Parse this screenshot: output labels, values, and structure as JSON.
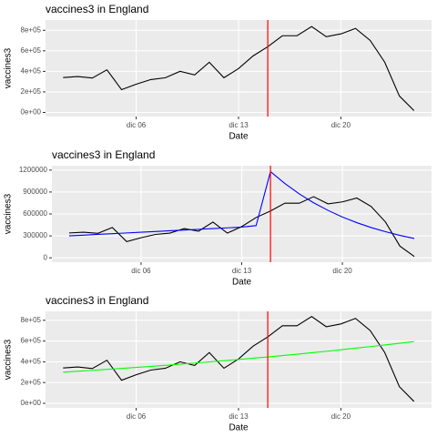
{
  "chart_data": [
    {
      "type": "line",
      "title": "vaccines3 in England",
      "xlabel": "Date",
      "ylabel": "vaccines3",
      "x": [
        1,
        2,
        3,
        4,
        5,
        6,
        7,
        8,
        9,
        10,
        11,
        12,
        13,
        14,
        15,
        16,
        17,
        18,
        19,
        20,
        21,
        22,
        23,
        24,
        25
      ],
      "xlim": [
        -0.2,
        26.2
      ],
      "xticks": [
        {
          "value": 6,
          "label": "dic 06"
        },
        {
          "value": 13,
          "label": "dic 13"
        },
        {
          "value": 20,
          "label": "dic 20"
        }
      ],
      "ylim": [
        -40000,
        900000
      ],
      "yticks": [
        {
          "value": 0,
          "label": "0e+00"
        },
        {
          "value": 200000,
          "label": "2e+05"
        },
        {
          "value": 400000,
          "label": "4e+05"
        },
        {
          "value": 600000,
          "label": "6e+05"
        },
        {
          "value": 800000,
          "label": "8e+05"
        }
      ],
      "vline": {
        "value": 15,
        "color": "#ff0000"
      },
      "series": [
        {
          "color": "#000000",
          "values": [
            340000,
            350000,
            335000,
            415000,
            222000,
            275000,
            320000,
            338000,
            400000,
            365000,
            489000,
            338000,
            427000,
            551000,
            640000,
            747000,
            747000,
            836000,
            738000,
            765000,
            818000,
            702000,
            489000,
            160000,
            18000
          ]
        }
      ]
    },
    {
      "type": "line",
      "title": "vaccines3 in England",
      "xlabel": "Date",
      "ylabel": "vaccines3",
      "x": [
        1,
        2,
        3,
        4,
        5,
        6,
        7,
        8,
        9,
        10,
        11,
        12,
        13,
        14,
        15,
        16,
        17,
        18,
        19,
        20,
        21,
        22,
        23,
        24,
        25
      ],
      "xlim": [
        -0.2,
        26.2
      ],
      "xticks": [
        {
          "value": 6,
          "label": "dic 06"
        },
        {
          "value": 13,
          "label": "dic 13"
        },
        {
          "value": 20,
          "label": "dic 20"
        }
      ],
      "ylim": [
        -60000,
        1260000
      ],
      "yticks": [
        0,
        300000,
        600000,
        900000,
        1200000
      ],
      "vline": {
        "value": 15,
        "color": "#ff0000"
      },
      "series": [
        {
          "color": "#000000",
          "values": [
            340000,
            350000,
            335000,
            415000,
            222000,
            275000,
            320000,
            338000,
            400000,
            365000,
            489000,
            338000,
            427000,
            551000,
            640000,
            747000,
            747000,
            836000,
            738000,
            765000,
            818000,
            702000,
            489000,
            160000,
            18000
          ]
        },
        {
          "color": "#0000ff",
          "values": [
            300000,
            310000,
            320000,
            330000,
            340000,
            350000,
            360000,
            370000,
            380000,
            390000,
            400000,
            410000,
            420000,
            440000,
            1180000,
            1016000,
            875000,
            753000,
            649000,
            558000,
            481000,
            414000,
            357000,
            307000,
            265000
          ]
        }
      ]
    },
    {
      "type": "line",
      "title": "vaccines3 in England",
      "xlabel": "Date",
      "ylabel": "vaccines3",
      "x": [
        1,
        2,
        3,
        4,
        5,
        6,
        7,
        8,
        9,
        10,
        11,
        12,
        13,
        14,
        15,
        16,
        17,
        18,
        19,
        20,
        21,
        22,
        23,
        24,
        25
      ],
      "xlim": [
        -0.2,
        26.2
      ],
      "xticks": [
        {
          "value": 6,
          "label": "dic 06"
        },
        {
          "value": 13,
          "label": "dic 13"
        },
        {
          "value": 20,
          "label": "dic 20"
        }
      ],
      "ylim": [
        -44000,
        886000
      ],
      "yticks": [
        {
          "value": 0,
          "label": "0e+00"
        },
        {
          "value": 200000,
          "label": "2e+05"
        },
        {
          "value": 400000,
          "label": "4e+05"
        },
        {
          "value": 600000,
          "label": "6e+05"
        },
        {
          "value": 800000,
          "label": "8e+05"
        }
      ],
      "vline": {
        "value": 15,
        "color": "#ff0000"
      },
      "series": [
        {
          "color": "#000000",
          "values": [
            340000,
            350000,
            335000,
            415000,
            222000,
            275000,
            320000,
            338000,
            400000,
            365000,
            489000,
            338000,
            427000,
            551000,
            640000,
            747000,
            747000,
            836000,
            738000,
            765000,
            818000,
            702000,
            489000,
            160000,
            18000
          ]
        },
        {
          "color": "#00ff00",
          "values": [
            300000,
            309000,
            318000,
            327000,
            336000,
            346000,
            356000,
            366000,
            377000,
            388000,
            399000,
            411000,
            422000,
            435000,
            447000,
            460000,
            473000,
            487000,
            501000,
            516000,
            531000,
            546000,
            562000,
            578000,
            595000
          ]
        }
      ]
    }
  ]
}
